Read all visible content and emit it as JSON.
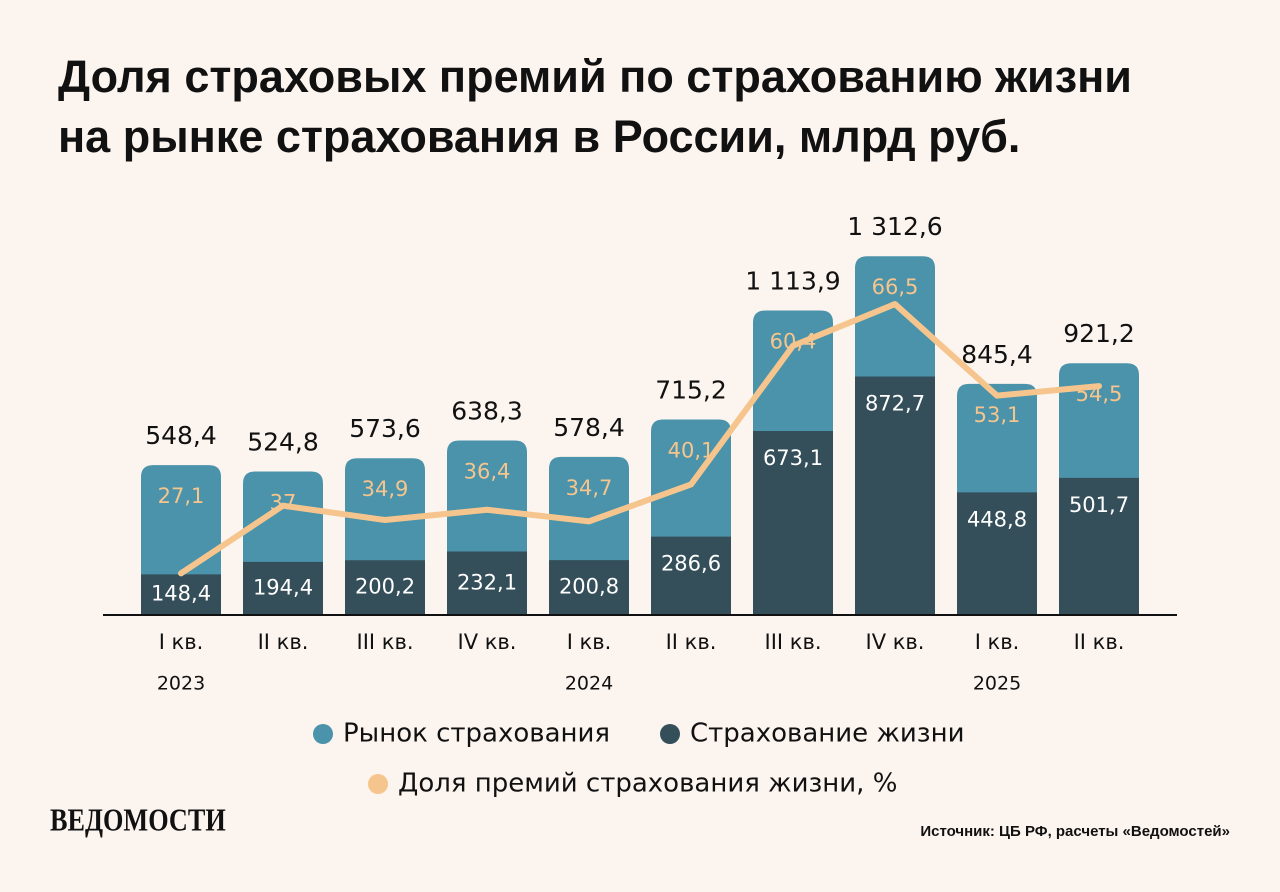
{
  "chart_data": {
    "type": "bar",
    "title": [
      "Доля страховых премий по страхованию жизни",
      "на рынке страхования в России, млрд руб."
    ],
    "categories": [
      "I кв.",
      "II кв.",
      "III кв.",
      "IV кв.",
      "I кв.",
      "II кв.",
      "III кв.",
      "IV кв.",
      "I кв.",
      "II кв."
    ],
    "years": [
      "2023",
      null,
      null,
      null,
      "2024",
      null,
      null,
      null,
      "2025",
      null
    ],
    "ylim": [
      0,
      1800
    ],
    "y2lim": [
      21,
      93
    ],
    "series": [
      {
        "name": "Рынок страхования",
        "color": "#4a93aa",
        "type": "bar",
        "values": [
          548.4,
          524.8,
          573.6,
          638.3,
          578.4,
          715.2,
          1113.9,
          1312.6,
          845.4,
          921.2
        ],
        "value_labels": [
          "548,4",
          "524,8",
          "573,6",
          "638,3",
          "578,4",
          "715,2",
          "1 113,9",
          "1 312,6",
          "845,4",
          "921,2"
        ]
      },
      {
        "name": "Страхование жизни",
        "color": "#344f5a",
        "type": "bar",
        "values": [
          148.4,
          194.4,
          200.2,
          232.1,
          200.8,
          286.6,
          673.1,
          872.7,
          448.8,
          501.7
        ],
        "value_labels": [
          "148,4",
          "194,4",
          "200,2",
          "232,1",
          "200,8",
          "286,6",
          "673,1",
          "872,7",
          "448,8",
          "501,7"
        ]
      },
      {
        "name": "Доля премий страхования жизни, %",
        "color": "#f6c58d",
        "type": "line",
        "axis": "y2",
        "values": [
          27.1,
          37,
          34.9,
          36.4,
          34.7,
          40.1,
          60.4,
          66.5,
          53.1,
          54.5
        ],
        "value_labels": [
          "27,1",
          "37",
          "34,9",
          "36,4",
          "34,7",
          "40,1",
          "60,4",
          "66,5",
          "53,1",
          "54,5"
        ]
      }
    ],
    "brand": "ВЕДОМОСТИ",
    "source": "Источник: ЦБ РФ, расчеты «Ведомостей»"
  }
}
